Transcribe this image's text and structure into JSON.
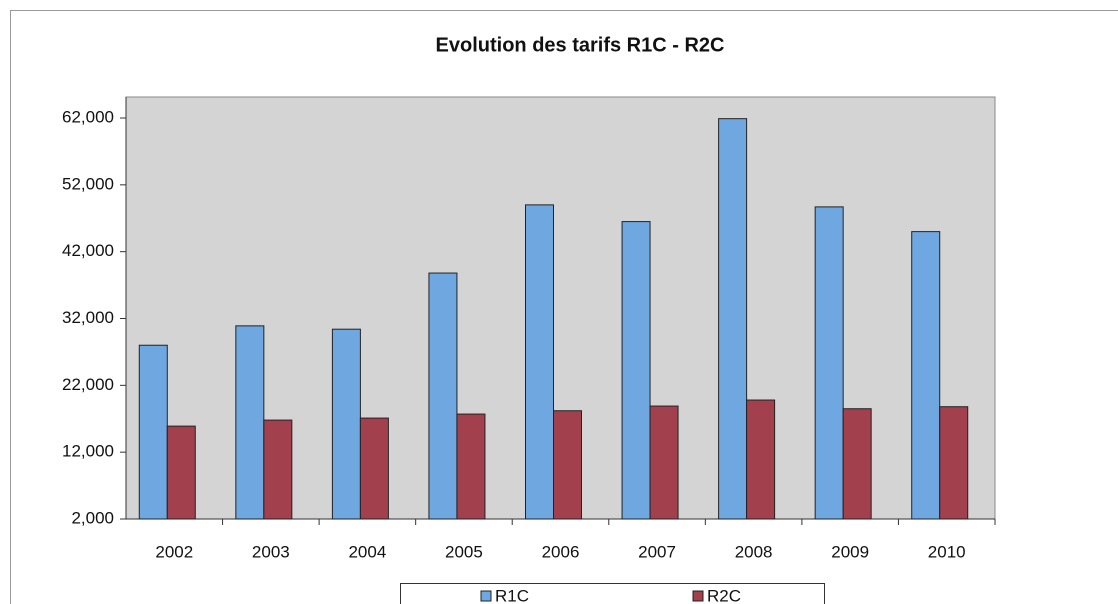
{
  "chart_data": {
    "type": "bar",
    "title": "Evolution des tarifs R1C - R2C",
    "categories": [
      "2002",
      "2003",
      "2004",
      "2005",
      "2006",
      "2007",
      "2008",
      "2009",
      "2010"
    ],
    "series": [
      {
        "name": "R1C",
        "color": "#6fa8e0",
        "values": [
          28000,
          30900,
          30400,
          38800,
          49000,
          46500,
          61900,
          48700,
          45000
        ]
      },
      {
        "name": "R2C",
        "color": "#a3404e",
        "values": [
          15900,
          16800,
          17100,
          17700,
          18200,
          18900,
          19800,
          18500,
          18800
        ]
      }
    ],
    "ylim": [
      2000,
      65000
    ],
    "yticks": [
      {
        "value": 2000,
        "label": "2,000"
      },
      {
        "value": 12000,
        "label": "12,000"
      },
      {
        "value": 22000,
        "label": "22,000"
      },
      {
        "value": 32000,
        "label": "32,000"
      },
      {
        "value": 42000,
        "label": "42,000"
      },
      {
        "value": 52000,
        "label": "52,000"
      },
      {
        "value": 62000,
        "label": "62,000"
      }
    ],
    "grid": false,
    "legend": "bottom"
  }
}
